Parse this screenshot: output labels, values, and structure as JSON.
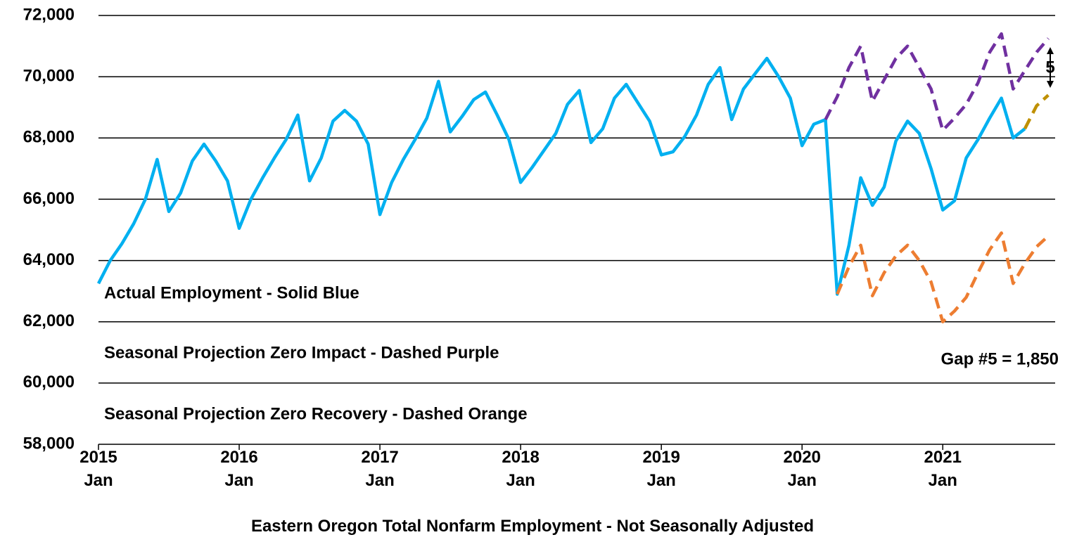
{
  "chart_data": {
    "type": "line",
    "x_label": "Eastern Oregon Total Nonfarm Employment - Not Seasonally Adjusted",
    "categories": [
      "2015\nJan",
      null,
      null,
      null,
      null,
      null,
      null,
      null,
      null,
      null,
      null,
      null,
      "2016\nJan",
      null,
      null,
      null,
      null,
      null,
      null,
      null,
      null,
      null,
      null,
      null,
      "2017\nJan",
      null,
      null,
      null,
      null,
      null,
      null,
      null,
      null,
      null,
      null,
      null,
      "2018\nJan",
      null,
      null,
      null,
      null,
      null,
      null,
      null,
      null,
      null,
      null,
      null,
      "2019\nJan",
      null,
      null,
      null,
      null,
      null,
      null,
      null,
      null,
      null,
      null,
      null,
      "2020\nJan",
      null,
      null,
      null,
      null,
      null,
      null,
      null,
      null,
      null,
      null,
      null,
      "2021\nJan",
      null,
      null,
      null,
      null,
      null,
      null,
      null,
      null,
      null
    ],
    "series": [
      {
        "name": "Actual Employment - Solid Blue",
        "color": "#00b0f0",
        "dashed": false,
        "values": [
          63250,
          64000,
          64550,
          65200,
          66000,
          67300,
          65600,
          66200,
          67250,
          67800,
          67250,
          66600,
          65050,
          66000,
          66700,
          67350,
          67950,
          68750,
          66600,
          67350,
          68550,
          68900,
          68550,
          67800,
          65500,
          66550,
          67300,
          67950,
          68650,
          69850,
          68200,
          68700,
          69250,
          69500,
          68750,
          67950,
          66550,
          67050,
          67600,
          68150,
          69100,
          69550,
          67850,
          68300,
          69300,
          69750,
          69150,
          68550,
          67450,
          67550,
          68050,
          68750,
          69750,
          70300,
          68600,
          69600,
          70100,
          70600,
          70000,
          69300,
          67750,
          68450,
          68600,
          62900,
          64500,
          66700,
          65800,
          66400,
          67900,
          68550,
          68150,
          67000,
          65650,
          65950,
          67350,
          67950,
          68650,
          69300,
          68000,
          68300,
          null,
          null
        ]
      },
      {
        "name": "Seasonal Projection Zero Impact - Dashed Purple",
        "color": "#7030a0",
        "dashed": true,
        "values": [
          null,
          null,
          null,
          null,
          null,
          null,
          null,
          null,
          null,
          null,
          null,
          null,
          null,
          null,
          null,
          null,
          null,
          null,
          null,
          null,
          null,
          null,
          null,
          null,
          null,
          null,
          null,
          null,
          null,
          null,
          null,
          null,
          null,
          null,
          null,
          null,
          null,
          null,
          null,
          null,
          null,
          null,
          null,
          null,
          null,
          null,
          null,
          null,
          null,
          null,
          null,
          null,
          null,
          null,
          null,
          null,
          null,
          null,
          null,
          null,
          null,
          null,
          68600,
          69350,
          70300,
          71000,
          69200,
          69900,
          70600,
          71000,
          70300,
          69600,
          68250,
          68650,
          69100,
          69800,
          70800,
          71400,
          69600,
          70200,
          70800,
          71250
        ]
      },
      {
        "name": "Seasonal Projection Zero Recovery - Dashed Orange",
        "color": "#ed7d31",
        "dashed": true,
        "values": [
          null,
          null,
          null,
          null,
          null,
          null,
          null,
          null,
          null,
          null,
          null,
          null,
          null,
          null,
          null,
          null,
          null,
          null,
          null,
          null,
          null,
          null,
          null,
          null,
          null,
          null,
          null,
          null,
          null,
          null,
          null,
          null,
          null,
          null,
          null,
          null,
          null,
          null,
          null,
          null,
          null,
          null,
          null,
          null,
          null,
          null,
          null,
          null,
          null,
          null,
          null,
          null,
          null,
          null,
          null,
          null,
          null,
          null,
          null,
          null,
          null,
          null,
          null,
          62900,
          63800,
          64500,
          62850,
          63600,
          64150,
          64500,
          64000,
          63300,
          62000,
          62350,
          62800,
          63600,
          64350,
          64900,
          63250,
          63900,
          64450,
          64800
        ]
      },
      {
        "color": "#bf9000",
        "dashed": true,
        "values": [
          null,
          null,
          null,
          null,
          null,
          null,
          null,
          null,
          null,
          null,
          null,
          null,
          null,
          null,
          null,
          null,
          null,
          null,
          null,
          null,
          null,
          null,
          null,
          null,
          null,
          null,
          null,
          null,
          null,
          null,
          null,
          null,
          null,
          null,
          null,
          null,
          null,
          null,
          null,
          null,
          null,
          null,
          null,
          null,
          null,
          null,
          null,
          null,
          null,
          null,
          null,
          null,
          null,
          null,
          null,
          null,
          null,
          null,
          null,
          null,
          null,
          null,
          null,
          null,
          null,
          null,
          null,
          null,
          null,
          null,
          null,
          null,
          null,
          null,
          null,
          null,
          null,
          null,
          null,
          68300,
          69050,
          69400
        ]
      }
    ],
    "ylim": [
      58000,
      72000
    ],
    "yticks": [
      {
        "value": 58000,
        "label": "58,000"
      },
      {
        "value": 60000,
        "label": "60,000"
      },
      {
        "value": 62000,
        "label": "62,000"
      },
      {
        "value": 64000,
        "label": "64,000"
      },
      {
        "value": 66000,
        "label": "66,000"
      },
      {
        "value": 68000,
        "label": "68,000"
      },
      {
        "value": 70000,
        "label": "70,000"
      },
      {
        "value": 72000,
        "label": "72,000"
      }
    ],
    "grid": true,
    "annotations": [
      "5",
      "Gap #5 = 1,850"
    ]
  }
}
